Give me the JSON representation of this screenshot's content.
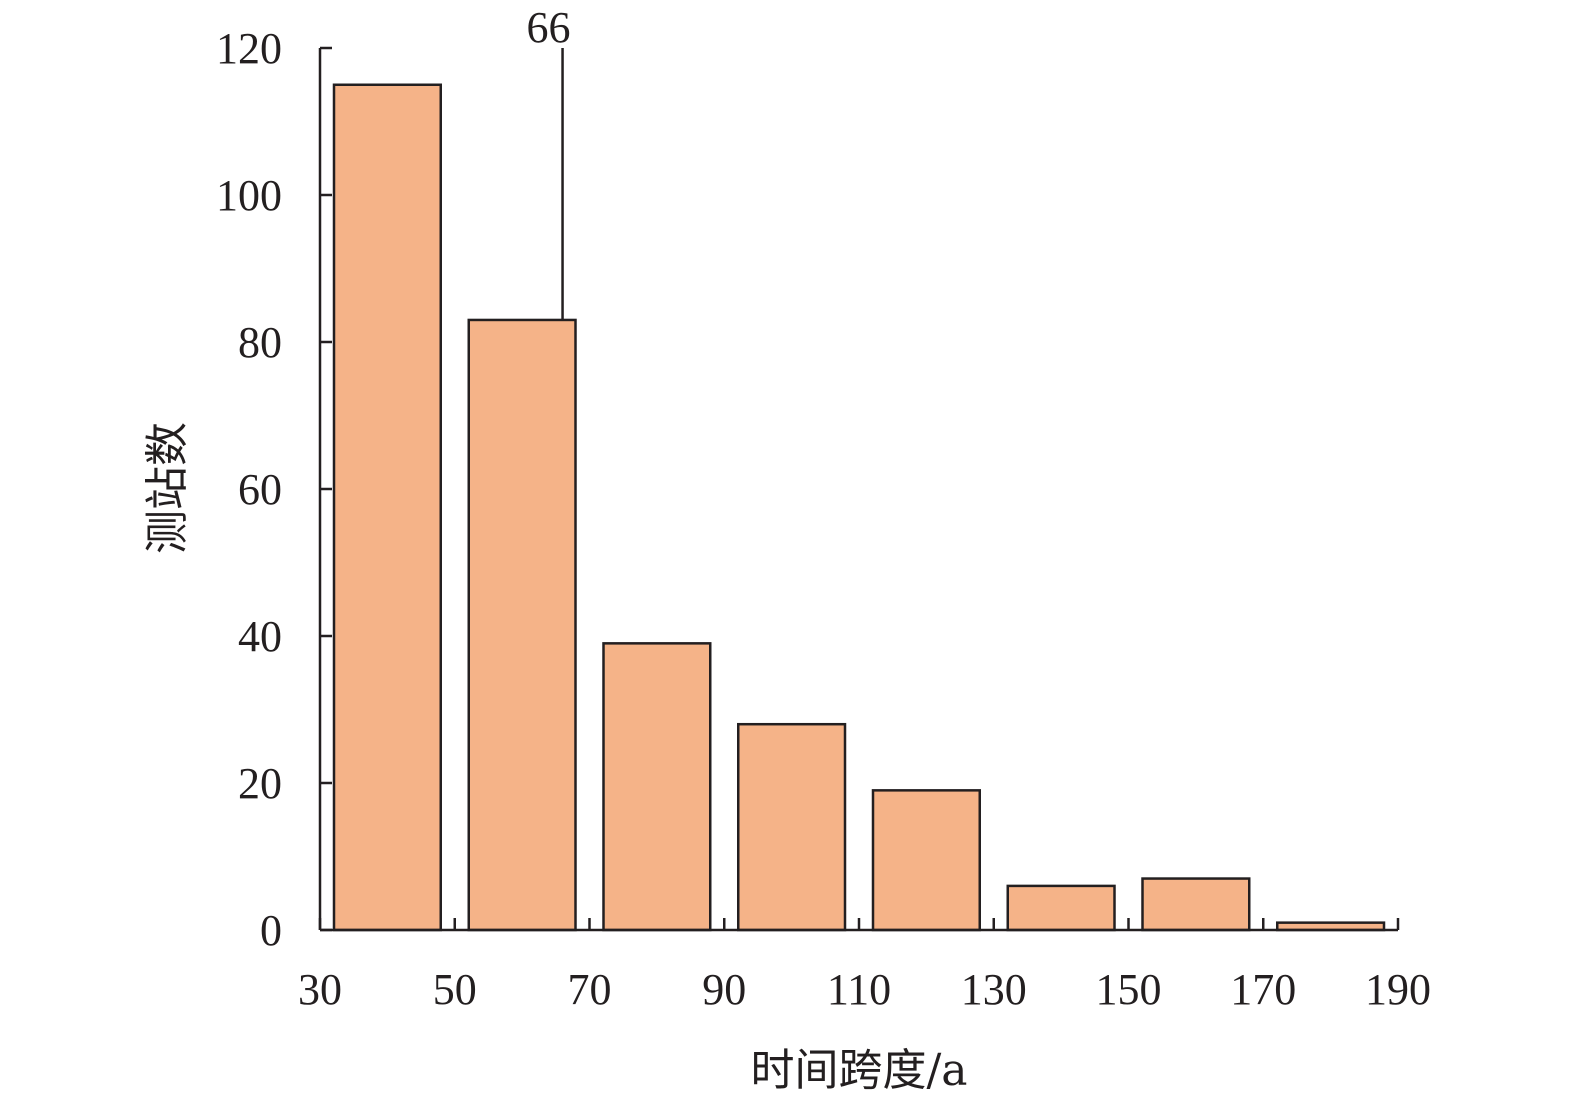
{
  "chart_data": {
    "type": "bar",
    "title": "",
    "xlabel": "时间跨度/a",
    "ylabel": "测站数",
    "bins": [
      {
        "start": 30,
        "end": 50,
        "value": 115
      },
      {
        "start": 50,
        "end": 70,
        "value": 83
      },
      {
        "start": 70,
        "end": 90,
        "value": 39
      },
      {
        "start": 90,
        "end": 110,
        "value": 28
      },
      {
        "start": 110,
        "end": 130,
        "value": 19
      },
      {
        "start": 130,
        "end": 150,
        "value": 6
      },
      {
        "start": 150,
        "end": 170,
        "value": 7
      },
      {
        "start": 170,
        "end": 190,
        "value": 1
      }
    ],
    "xticks": [
      30,
      50,
      70,
      90,
      110,
      130,
      150,
      170,
      190
    ],
    "yticks": [
      0,
      20,
      40,
      60,
      80,
      100,
      120
    ],
    "xlim": [
      30,
      190
    ],
    "ylim": [
      0,
      120
    ],
    "annotation": {
      "x": 66,
      "label": "66"
    },
    "bar_color": "#f5b388",
    "edge_color": "#231f20",
    "grid": false,
    "legend": "none"
  }
}
